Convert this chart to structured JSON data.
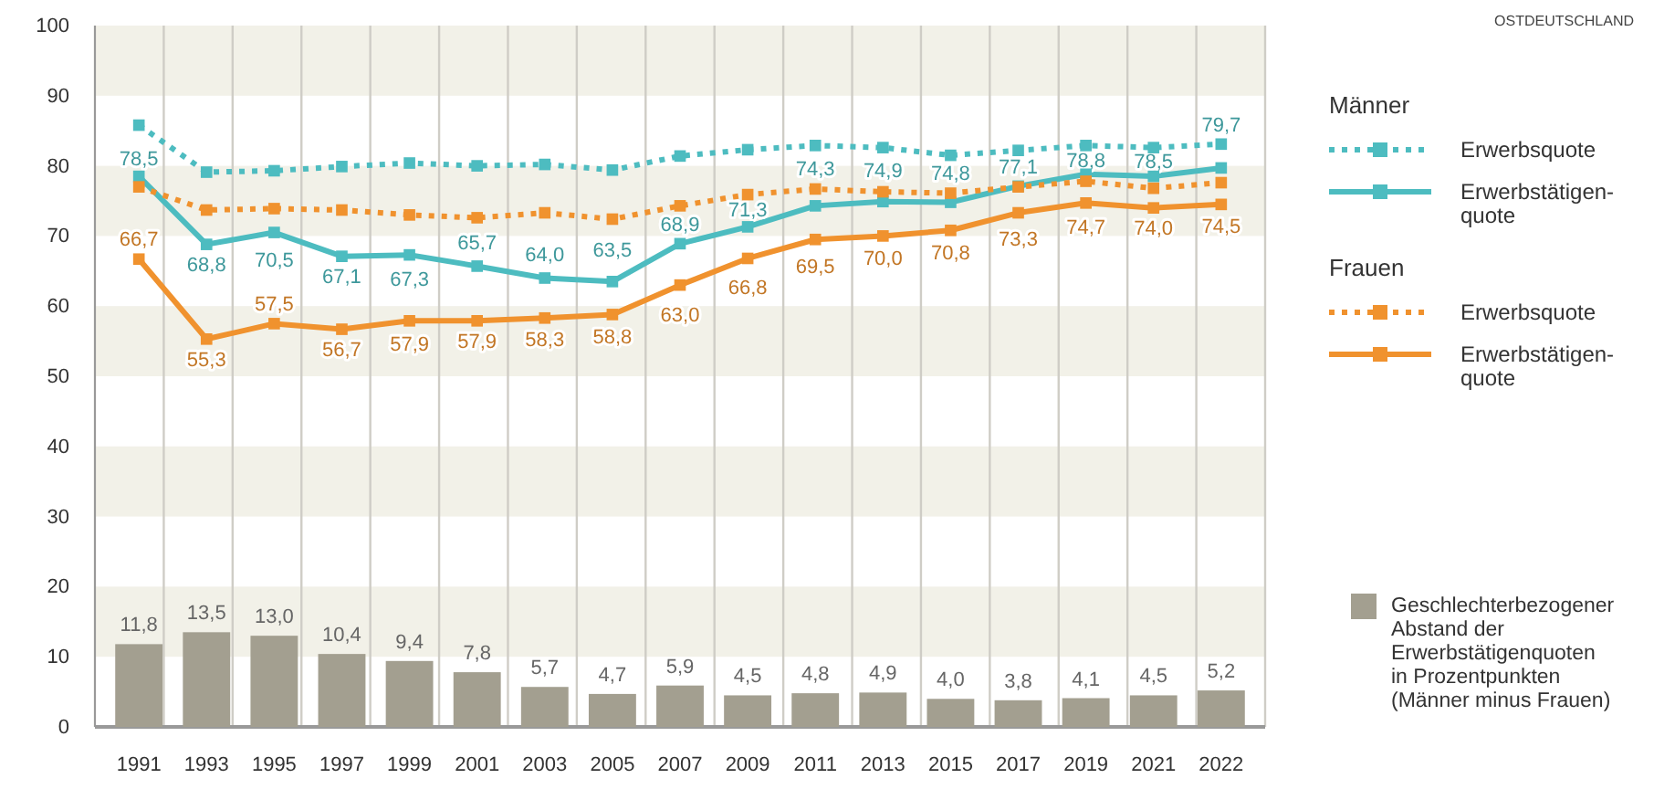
{
  "chart_data": {
    "type": "line",
    "annotations": [
      "OSTDEUTSCHLAND",
      "Männer",
      "Frauen"
    ],
    "categories": [
      "1991",
      "1993",
      "1995",
      "1997",
      "1999",
      "2001",
      "2003",
      "2005",
      "2007",
      "2009",
      "2011",
      "2013",
      "2015",
      "2017",
      "2019",
      "2021",
      "2022"
    ],
    "ylim": [
      0,
      100
    ],
    "yticks": [
      0,
      10,
      20,
      30,
      40,
      50,
      60,
      70,
      80,
      90,
      100
    ],
    "grid": true,
    "legend": "right",
    "marker": "square",
    "series": [
      {
        "name": "Geschlechterbezogener\nAbstand der\nErwerbstätigenquoten\nin Prozentpunkten\n(Männer minus Frauen)",
        "type": "bar",
        "color": "#a39f90",
        "values": [
          11.8,
          13.5,
          13.0,
          10.4,
          9.4,
          7.8,
          5.7,
          4.7,
          5.9,
          4.5,
          4.8,
          4.9,
          4.0,
          3.8,
          4.1,
          4.5,
          5.2
        ],
        "value_labels": [
          "11,8",
          "13,5",
          "13,0",
          "10,4",
          "9,4",
          "7,8",
          "5,7",
          "4,7",
          "5,9",
          "4,5",
          "4,8",
          "4,9",
          "4,0",
          "3,8",
          "4,1",
          "4,5",
          "5,2"
        ]
      },
      {
        "name": "Erwerbsquote",
        "line_style": "dotted",
        "color": "#4dbcc0",
        "values": [
          85.8,
          79.1,
          79.3,
          79.9,
          80.4,
          80.0,
          80.2,
          79.4,
          81.4,
          82.3,
          82.9,
          82.6,
          81.5,
          82.2,
          82.9,
          82.6,
          83.1
        ]
      },
      {
        "name": "Erwerbstätigen-\nquote",
        "line_style": "solid",
        "color": "#4dbcc0",
        "values": [
          78.5,
          68.8,
          70.5,
          67.1,
          67.3,
          65.7,
          64.0,
          63.5,
          68.9,
          71.3,
          74.3,
          74.9,
          74.8,
          77.1,
          78.8,
          78.5,
          79.7
        ],
        "value_labels": [
          "78,5",
          "68,8",
          "70,5",
          "67,1",
          "67,3",
          "65,7",
          "64,0",
          "63,5",
          "68,9",
          "71,3",
          "74,3",
          "74,9",
          "74,8",
          "77,1",
          "78,8",
          "78,5",
          "79,7"
        ]
      },
      {
        "name": "Erwerbsquote",
        "line_style": "dotted",
        "color": "#f0922e",
        "values": [
          77.0,
          73.7,
          73.9,
          73.7,
          73.0,
          72.6,
          73.3,
          72.4,
          74.3,
          75.9,
          76.7,
          76.3,
          76.1,
          77.0,
          77.8,
          76.8,
          77.6
        ]
      },
      {
        "name": "Erwerbstätigen-\nquote",
        "line_style": "solid",
        "color": "#f0922e",
        "values": [
          66.7,
          55.3,
          57.5,
          56.7,
          57.9,
          57.9,
          58.3,
          58.8,
          63.0,
          66.8,
          69.5,
          70.0,
          70.8,
          73.3,
          74.7,
          74.0,
          74.5
        ],
        "value_labels": [
          "66,7",
          "55,3",
          "57,5",
          "56,7",
          "57,9",
          "57,9",
          "58,3",
          "58,8",
          "63,0",
          "66,8",
          "69,5",
          "70,0",
          "70,8",
          "73,3",
          "74,7",
          "74,0",
          "74,5"
        ]
      }
    ]
  }
}
